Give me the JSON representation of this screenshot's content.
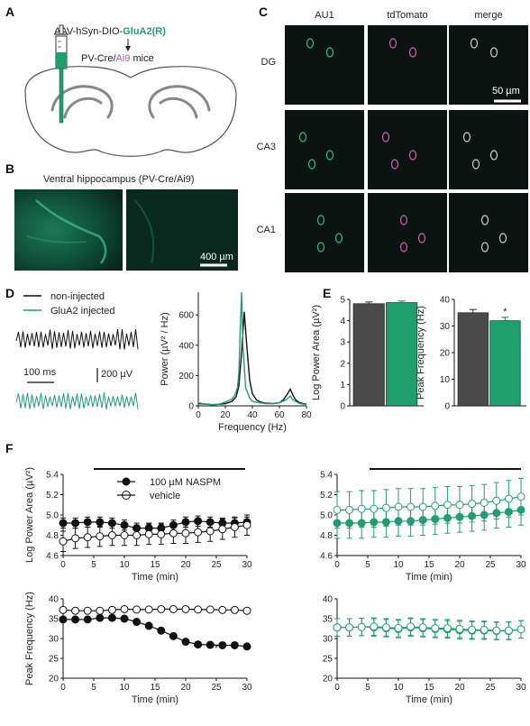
{
  "panel_letters": {
    "a": "A",
    "b": "B",
    "c": "C",
    "d": "D",
    "e": "E",
    "f": "F"
  },
  "colors": {
    "green": "#1f9e6e",
    "magenta": "#c84aa3",
    "dark": "#4a4a4a",
    "black": "#111111"
  },
  "panelA": {
    "vector_prefix": "AAV-hSyn-DIO-",
    "vector_construct": "GluA2(R)",
    "mice_prefix": "PV-Cre/",
    "mice_reporter": "Ai9",
    "mice_suffix": " mice"
  },
  "panelB": {
    "title": "Ventral hippocampus (PV-Cre/Ai9)",
    "scalebar": "400 µm"
  },
  "panelC": {
    "columns": [
      "AU1",
      "tdTomato",
      "merge"
    ],
    "rows": [
      "DG",
      "CA3",
      "CA1"
    ],
    "scalebar": "50 µm"
  },
  "panelD": {
    "legend": [
      "non-injected",
      "GluA2 injected"
    ],
    "time_scale": "100 ms",
    "volt_scale": "200 µV",
    "ylabel": "Power (µV² / Hz)",
    "xlabel": "Frequency (Hz)",
    "xticks": [
      "0",
      "20",
      "40",
      "60",
      "80"
    ],
    "yticks": [
      "0",
      "200",
      "400",
      "600"
    ]
  },
  "panelE": {
    "left_ylabel": "Log Power Area (µV²)",
    "left_yticks": [
      "0",
      "1",
      "2",
      "3",
      "4",
      "5"
    ],
    "right_ylabel": "Peak Frequency (Hz)",
    "right_yticks": [
      "0",
      "10",
      "20",
      "30",
      "40"
    ],
    "significance": "*"
  },
  "panelF": {
    "legend": [
      "100 µM NASPM",
      "vehicle"
    ],
    "top_ylabel": "Log Power Area (µV²)",
    "top_yticks": [
      "4.6",
      "4.8",
      "5.0",
      "5.2",
      "5.4"
    ],
    "bottom_ylabel": "Peak Frequency (Hz)",
    "bottom_yticks": [
      "20",
      "25",
      "30",
      "35",
      "40"
    ],
    "xlabel": "Time (min)",
    "xticks": [
      "0",
      "5",
      "10",
      "15",
      "20",
      "25",
      "30"
    ],
    "significance": "***"
  },
  "chart_data": [
    {
      "type": "line",
      "title": "",
      "xlabel": "Frequency (Hz)",
      "ylabel": "Power (µV² / Hz)",
      "xlim": [
        0,
        80
      ],
      "ylim": [
        0,
        750
      ],
      "series": [
        {
          "name": "non-injected",
          "x": [
            0,
            5,
            10,
            15,
            20,
            25,
            28,
            30,
            32,
            34,
            36,
            38,
            40,
            43,
            46,
            50,
            55,
            60,
            63,
            66,
            68,
            70,
            72,
            75,
            80
          ],
          "y": [
            15,
            12,
            8,
            10,
            15,
            30,
            60,
            130,
            350,
            620,
            380,
            170,
            80,
            40,
            25,
            18,
            15,
            20,
            40,
            80,
            110,
            70,
            40,
            20,
            10
          ]
        },
        {
          "name": "GluA2 injected",
          "x": [
            0,
            5,
            10,
            15,
            20,
            25,
            27,
            29,
            30,
            31,
            32,
            33,
            35,
            38,
            40,
            45,
            50,
            55,
            60,
            65,
            68,
            70,
            75,
            80
          ],
          "y": [
            20,
            12,
            8,
            10,
            25,
            45,
            70,
            120,
            220,
            500,
            750,
            400,
            120,
            50,
            30,
            20,
            15,
            15,
            20,
            40,
            65,
            40,
            15,
            8
          ]
        }
      ]
    },
    {
      "type": "bar",
      "title": "",
      "ylabel": "Log Power Area (µV²)",
      "categories": [
        "non-injected",
        "GluA2 injected"
      ],
      "values": [
        4.8,
        4.85
      ],
      "errors": [
        0.08,
        0.08
      ],
      "ylim": [
        0,
        5
      ]
    },
    {
      "type": "bar",
      "title": "",
      "ylabel": "Peak Frequency (Hz)",
      "categories": [
        "non-injected",
        "GluA2 injected"
      ],
      "values": [
        35,
        32
      ],
      "errors": [
        1.2,
        1.3
      ],
      "ylim": [
        0,
        40
      ]
    },
    {
      "type": "line",
      "title": "",
      "xlabel": "Time (min)",
      "ylabel": "Log Power Area (µV²)",
      "xlim": [
        0,
        30
      ],
      "ylim": [
        4.6,
        5.4
      ],
      "series": [
        {
          "name": "100 µM NASPM",
          "x": [
            0,
            2,
            4,
            6,
            8,
            10,
            12,
            14,
            16,
            18,
            20,
            22,
            24,
            26,
            28,
            30
          ],
          "y": [
            4.92,
            4.92,
            4.93,
            4.93,
            4.92,
            4.9,
            4.87,
            4.87,
            4.87,
            4.9,
            4.93,
            4.94,
            4.93,
            4.92,
            4.92,
            4.93
          ],
          "err": [
            0.05,
            0.05,
            0.05,
            0.05,
            0.05,
            0.05,
            0.05,
            0.05,
            0.05,
            0.05,
            0.05,
            0.05,
            0.05,
            0.05,
            0.05,
            0.05
          ]
        },
        {
          "name": "vehicle",
          "x": [
            0,
            2,
            4,
            6,
            8,
            10,
            12,
            14,
            16,
            18,
            20,
            22,
            24,
            26,
            28,
            30
          ],
          "y": [
            4.74,
            4.77,
            4.78,
            4.79,
            4.8,
            4.8,
            4.8,
            4.81,
            4.81,
            4.82,
            4.82,
            4.83,
            4.84,
            4.86,
            4.88,
            4.9
          ],
          "err": [
            0.1,
            0.1,
            0.1,
            0.1,
            0.1,
            0.1,
            0.1,
            0.1,
            0.1,
            0.1,
            0.1,
            0.1,
            0.1,
            0.1,
            0.1,
            0.1
          ]
        }
      ]
    },
    {
      "type": "line",
      "title": "",
      "xlabel": "Time (min)",
      "ylabel": "Log Power Area (µV²)",
      "xlim": [
        0,
        30
      ],
      "ylim": [
        4.6,
        5.4
      ],
      "series": [
        {
          "name": "100 µM NASPM",
          "x": [
            0,
            2,
            4,
            6,
            8,
            10,
            12,
            14,
            16,
            18,
            20,
            22,
            24,
            26,
            28,
            30
          ],
          "y": [
            4.92,
            4.92,
            4.92,
            4.93,
            4.93,
            4.94,
            4.94,
            4.95,
            4.96,
            4.97,
            4.98,
            4.99,
            5.0,
            5.02,
            5.03,
            5.05
          ],
          "err": [
            0.15,
            0.15,
            0.15,
            0.15,
            0.15,
            0.15,
            0.15,
            0.15,
            0.15,
            0.15,
            0.15,
            0.15,
            0.15,
            0.15,
            0.15,
            0.15
          ]
        },
        {
          "name": "vehicle",
          "x": [
            0,
            2,
            4,
            6,
            8,
            10,
            12,
            14,
            16,
            18,
            20,
            22,
            24,
            26,
            28,
            30
          ],
          "y": [
            5.05,
            5.05,
            5.06,
            5.06,
            5.07,
            5.08,
            5.08,
            5.08,
            5.09,
            5.1,
            5.1,
            5.11,
            5.12,
            5.14,
            5.16,
            5.18
          ],
          "err": [
            0.18,
            0.18,
            0.18,
            0.18,
            0.18,
            0.18,
            0.18,
            0.18,
            0.18,
            0.18,
            0.18,
            0.18,
            0.18,
            0.18,
            0.18,
            0.18
          ]
        }
      ]
    },
    {
      "type": "line",
      "title": "",
      "xlabel": "Time (min)",
      "ylabel": "Peak Frequency (Hz)",
      "xlim": [
        0,
        30
      ],
      "ylim": [
        20,
        40
      ],
      "series": [
        {
          "name": "100 µM NASPM",
          "x": [
            0,
            2,
            4,
            6,
            8,
            10,
            12,
            14,
            16,
            18,
            20,
            22,
            24,
            26,
            28,
            30
          ],
          "y": [
            34.8,
            34.8,
            34.8,
            35.2,
            35.2,
            35.0,
            34.2,
            33.2,
            32.0,
            30.6,
            29.2,
            28.5,
            28.4,
            28.3,
            28.3,
            28.0
          ],
          "err": [
            0.6,
            0.6,
            0.6,
            0.6,
            0.6,
            0.6,
            0.6,
            0.6,
            0.6,
            0.6,
            0.6,
            0.6,
            0.6,
            0.6,
            0.6,
            0.6
          ]
        },
        {
          "name": "vehicle",
          "x": [
            0,
            2,
            4,
            6,
            8,
            10,
            12,
            14,
            16,
            18,
            20,
            22,
            24,
            26,
            28,
            30
          ],
          "y": [
            37.2,
            37.0,
            37.0,
            37.0,
            37.2,
            37.4,
            37.3,
            37.3,
            37.4,
            37.4,
            37.4,
            37.3,
            37.3,
            37.2,
            37.2,
            37.0
          ],
          "err": [
            0.6,
            0.6,
            0.6,
            0.6,
            0.6,
            0.6,
            0.6,
            0.6,
            0.6,
            0.6,
            0.6,
            0.6,
            0.6,
            0.6,
            0.6,
            0.6
          ]
        }
      ]
    },
    {
      "type": "line",
      "title": "",
      "xlabel": "Time (min)",
      "ylabel": "Peak Frequency (Hz)",
      "xlim": [
        0,
        30
      ],
      "ylim": [
        20,
        40
      ],
      "series": [
        {
          "name": "100 µM NASPM",
          "x": [
            0,
            2,
            4,
            6,
            8,
            10,
            12,
            14,
            16,
            18,
            20,
            22,
            24,
            26,
            28,
            30
          ],
          "y": [
            32.8,
            32.8,
            32.9,
            32.8,
            32.6,
            32.4,
            32.8,
            32.6,
            32.4,
            32.3,
            32.1,
            32.0,
            32.0,
            31.9,
            31.9,
            32.3
          ],
          "err": [
            2.2,
            2.2,
            2.2,
            2.2,
            2.2,
            2.2,
            2.2,
            2.2,
            2.2,
            2.2,
            2.2,
            2.2,
            2.2,
            2.2,
            2.2,
            2.2
          ]
        },
        {
          "name": "vehicle",
          "x": [
            0,
            2,
            4,
            6,
            8,
            10,
            12,
            14,
            16,
            18,
            20,
            22,
            24,
            26,
            28,
            30
          ],
          "y": [
            32.8,
            32.8,
            32.9,
            33.0,
            32.8,
            32.6,
            33.0,
            32.8,
            32.6,
            32.6,
            32.4,
            32.2,
            32.2,
            32.0,
            32.0,
            32.3
          ],
          "err": [
            2.2,
            2.2,
            2.2,
            2.2,
            2.2,
            2.2,
            2.2,
            2.2,
            2.2,
            2.2,
            2.2,
            2.2,
            2.2,
            2.2,
            2.2,
            2.2
          ]
        }
      ]
    }
  ]
}
